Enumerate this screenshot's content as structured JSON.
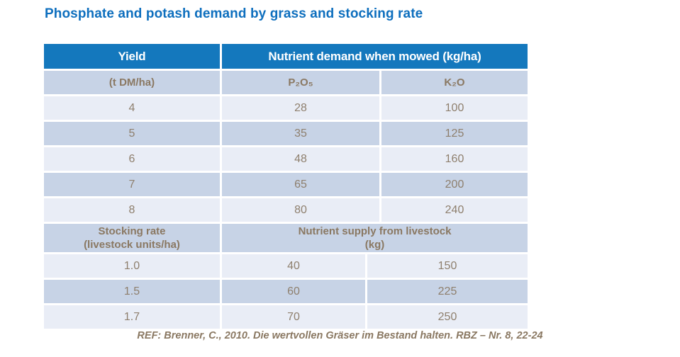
{
  "page": {
    "background_color": "#ffffff",
    "title": "Phosphate and potash demand by grass and stocking rate",
    "title_color": "#0e6fbe"
  },
  "colors": {
    "header_blue": "#1478bd",
    "row_dark": "#c7d3e6",
    "row_light": "#e9edf6",
    "text_brown": "#8a7862"
  },
  "table": {
    "header": {
      "yield": "Yield",
      "demand": "Nutrient demand when mowed (kg/ha)"
    },
    "subheader": {
      "unit": "(t DM/ha)",
      "p2o5": "P₂O₅",
      "k2o": "K₂O"
    },
    "mowed_rows": [
      [
        "4",
        "28",
        "100"
      ],
      [
        "5",
        "35",
        "125"
      ],
      [
        "6",
        "48",
        "160"
      ],
      [
        "7",
        "65",
        "200"
      ],
      [
        "8",
        "80",
        "240"
      ]
    ],
    "section_header": {
      "stocking_line1": "Stocking rate",
      "stocking_line2": "(livestock units/ha)",
      "supply_line1": "Nutrient supply from livestock",
      "supply_line2": "(kg)"
    },
    "livestock_rows": [
      [
        "1.0",
        "40",
        "150"
      ],
      [
        "1.5",
        "60",
        "225"
      ],
      [
        "1.7",
        "70",
        "250"
      ]
    ]
  },
  "chart_data": {
    "type": "table",
    "title": "Phosphate and potash demand by grass and stocking rate",
    "sections": [
      {
        "columns": [
          "Yield (t DM/ha)",
          "P2O5 (kg/ha)",
          "K2O (kg/ha)"
        ],
        "label": "Nutrient demand when mowed (kg/ha)",
        "rows": [
          [
            4,
            28,
            100
          ],
          [
            5,
            35,
            125
          ],
          [
            6,
            48,
            160
          ],
          [
            7,
            65,
            200
          ],
          [
            8,
            80,
            240
          ]
        ]
      },
      {
        "columns": [
          "Stocking rate (livestock units/ha)",
          "P2O5 (kg)",
          "K2O (kg)"
        ],
        "label": "Nutrient supply from livestock (kg)",
        "rows": [
          [
            1.0,
            40,
            150
          ],
          [
            1.5,
            60,
            225
          ],
          [
            1.7,
            70,
            250
          ]
        ]
      }
    ]
  },
  "footer": {
    "reference": "REF: Brenner, C., 2010. Die wertvollen Gräser im Bestand halten. RBZ – Nr. 8, 22-24"
  }
}
